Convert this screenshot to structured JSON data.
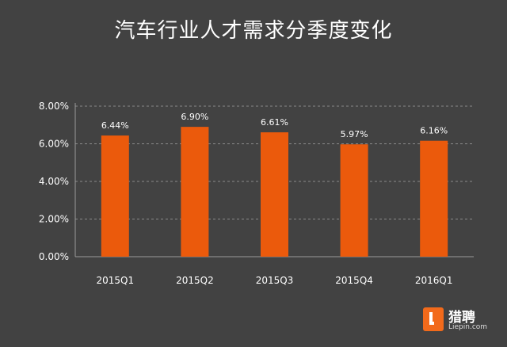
{
  "chart_data": {
    "type": "bar",
    "title": "汽车行业人才需求分季度变化",
    "categories": [
      "2015Q1",
      "2015Q2",
      "2015Q3",
      "2015Q4",
      "2016Q1"
    ],
    "values": [
      6.44,
      6.9,
      6.61,
      5.97,
      6.16
    ],
    "value_labels": [
      "6.44%",
      "6.90%",
      "6.61%",
      "5.97%",
      "6.16%"
    ],
    "y_ticks": [
      0,
      2,
      4,
      6,
      8
    ],
    "y_tick_labels": [
      "0.00%",
      "2.00%",
      "4.00%",
      "6.00%",
      "8.00%"
    ],
    "ylim": [
      0,
      8
    ],
    "grid": true,
    "colors": {
      "bar": "#eb5a0c",
      "background": "#424242",
      "text": "#ffffff",
      "grid": "#8a8a8a"
    }
  },
  "logo": {
    "name": "猎聘",
    "url": "Liepin.com"
  }
}
